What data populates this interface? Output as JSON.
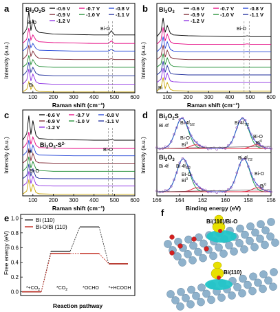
{
  "colors": {
    "series": [
      "#000000",
      "#e4007f",
      "#1e40d6",
      "#7a1f2b",
      "#1a8a2e",
      "#1b2a9a",
      "#8a2be2",
      "#c8a400"
    ],
    "fit_green": "#21a35a",
    "fit_red": "#e0203a",
    "fit_blue": "#2b55d6",
    "bi_o_curve": "#c0281c",
    "vesta_yellow": "#e8e000",
    "vesta_cyan": "#22c5c8",
    "atom_gray": "#8fb2cc"
  },
  "legend": {
    "labels": [
      "-0.6 V",
      "-0.7 V",
      "-0.8 V",
      "-0.9 V",
      "-1.0 V",
      "-1.1 V",
      "-1.2 V"
    ]
  },
  "panels": {
    "a": {
      "letter": "a",
      "sample": "Bi2O2S",
      "bi_o_left": "Bi-O",
      "bi_o_right": "Bi-O",
      "bi": "Bi"
    },
    "b": {
      "letter": "b",
      "sample": "Bi2O3",
      "bi_o_right": "Bi-O",
      "bi": "Bi"
    },
    "c": {
      "letter": "c",
      "sample": "Bi2O3-S2-",
      "bi_o_right": "Bi-O",
      "bi": "Bi",
      "bi_o_left": "Bi-O"
    },
    "d": {
      "letter": "d",
      "sample_top": "Bi2O2S",
      "sample_bottom": "Bi2O3",
      "labels_top": [
        "Bi 4f5/2",
        "Bi 4f7/2",
        "Bi 4f",
        "Bi-O",
        "Bi0",
        "Bi-O",
        "Bi0"
      ],
      "labels_bottom": [
        "Bi 4f5/2",
        "Bi 4f7/2",
        "Bi 4f",
        "Bi-O",
        "Bi0",
        "Bi-O",
        "Bi0"
      ]
    },
    "e": {
      "letter": "e",
      "series": [
        "Bi (110)",
        "Bi-O/Bi (110)"
      ]
    },
    "f": {
      "letter": "f",
      "label_top": "Bi(110)/Bi-O",
      "label_bottom": "Bi(110)"
    }
  },
  "axes": {
    "raman_xlabel": "Raman shift (cm⁻¹)",
    "intensity_ylabel": "Intensity (a.u.)",
    "binding_xlabel": "Binding energy (eV)",
    "free_energy_ylabel": "Free energy (eV)",
    "reaction_xlabel": "Reaction pathway",
    "raman_ticks": [
      "100",
      "200",
      "300",
      "400",
      "500",
      "600"
    ],
    "be_ticks": [
      "166",
      "164",
      "162",
      "160",
      "158",
      "156"
    ],
    "fe_ticks": [
      "1.0",
      "0.8",
      "0.6",
      "0.4",
      "0.2",
      "0.0"
    ],
    "steps": [
      "*+CO2",
      "*CO2",
      "*OCHO",
      "*+HCOOH"
    ]
  },
  "chart_data": [
    {
      "type": "line",
      "panel": "a",
      "title": "Bi2O2S",
      "xlabel": "Raman shift (cm⁻¹)",
      "ylabel": "Intensity (a.u.)",
      "xlim": [
        50,
        600
      ],
      "x_ticks": [
        100,
        200,
        300,
        400,
        500,
        600
      ],
      "reference_lines_x": [
        470,
        490
      ],
      "annotations": [
        "Bi-O",
        "Bi-O",
        "Bi"
      ],
      "series": [
        {
          "name": "-0.6 V",
          "x": [
            50,
            70,
            80,
            90,
            100,
            115,
            130,
            200,
            300,
            400,
            470,
            485,
            500,
            600
          ],
          "y": [
            6.8,
            7.5,
            9.6,
            7.3,
            8.6,
            7.4,
            7.1,
            6.9,
            6.85,
            6.8,
            6.8,
            7.3,
            6.8,
            6.8
          ]
        },
        {
          "name": "-0.7 V",
          "x": [
            50,
            70,
            80,
            90,
            100,
            115,
            130,
            200,
            300,
            400,
            470,
            485,
            500,
            600
          ],
          "y": [
            5.8,
            6.3,
            7.6,
            6.2,
            6.8,
            6.2,
            6.0,
            5.9,
            5.85,
            5.8,
            5.8,
            6.1,
            5.8,
            5.8
          ]
        },
        {
          "name": "-0.8 V",
          "x": [
            50,
            70,
            80,
            90,
            100,
            115,
            130,
            200,
            300,
            400,
            470,
            485,
            500,
            600
          ],
          "y": [
            4.9,
            5.3,
            6.4,
            5.3,
            5.8,
            5.2,
            5.0,
            4.95,
            4.9,
            4.9,
            4.9,
            5.1,
            4.9,
            4.9
          ]
        },
        {
          "name": "-0.9 V",
          "x": [
            50,
            70,
            80,
            90,
            100,
            115,
            130,
            200,
            300,
            400,
            470,
            485,
            500,
            600
          ],
          "y": [
            3.9,
            4.4,
            5.6,
            4.3,
            4.9,
            4.3,
            4.05,
            3.95,
            3.9,
            3.9,
            3.9,
            4.0,
            3.9,
            3.9
          ]
        },
        {
          "name": "-1.0 V",
          "x": [
            50,
            70,
            80,
            90,
            100,
            115,
            130,
            200,
            300,
            400,
            470,
            485,
            500,
            600
          ],
          "y": [
            3.0,
            3.4,
            4.4,
            3.3,
            3.9,
            3.3,
            3.1,
            3.0,
            3.0,
            3.0,
            3.0,
            3.05,
            3.0,
            3.0
          ]
        },
        {
          "name": "-1.1 V",
          "x": [
            50,
            70,
            80,
            90,
            100,
            115,
            130,
            200,
            300,
            400,
            470,
            485,
            500,
            600
          ],
          "y": [
            2.0,
            2.5,
            3.6,
            2.4,
            3.0,
            2.3,
            2.1,
            2.0,
            2.0,
            2.0,
            2.0,
            2.0,
            2.0,
            2.0
          ]
        },
        {
          "name": "-1.2 V",
          "x": [
            50,
            70,
            80,
            90,
            100,
            115,
            130,
            200,
            300,
            400,
            470,
            485,
            500,
            600
          ],
          "y": [
            1.0,
            1.5,
            2.8,
            1.4,
            2.2,
            1.3,
            1.1,
            1.0,
            1.0,
            1.0,
            1.0,
            1.0,
            1.0,
            1.0
          ]
        },
        {
          "name": "",
          "x": [
            50,
            70,
            80,
            90,
            100,
            115,
            130,
            200,
            300,
            400,
            470,
            485,
            500,
            600
          ],
          "y": [
            0.1,
            0.4,
            1.3,
            0.4,
            0.9,
            0.3,
            0.15,
            0.1,
            0.1,
            0.1,
            0.1,
            0.1,
            0.1,
            0.1
          ]
        }
      ]
    },
    {
      "type": "line",
      "panel": "b",
      "title": "Bi2O3",
      "xlabel": "Raman shift (cm⁻¹)",
      "ylabel": "Intensity (a.u.)",
      "xlim": [
        50,
        600
      ],
      "x_ticks": [
        100,
        200,
        300,
        400,
        500,
        600
      ],
      "reference_lines_x": [
        470,
        495
      ],
      "annotations": [
        "Bi-O",
        "Bi"
      ],
      "series": [
        {
          "name": "-0.6 V",
          "x": [
            50,
            70,
            80,
            90,
            100,
            115,
            130,
            200,
            300,
            400,
            470,
            485,
            500,
            600
          ],
          "y": [
            6.6,
            7.2,
            8.8,
            7.1,
            7.9,
            7.0,
            6.8,
            6.7,
            6.65,
            6.6,
            6.6,
            6.7,
            6.6,
            6.6
          ]
        },
        {
          "name": "-0.7 V",
          "x": [
            50,
            70,
            80,
            90,
            100,
            115,
            130,
            200,
            300,
            400,
            470,
            485,
            500,
            600
          ],
          "y": [
            5.7,
            6.2,
            7.7,
            6.1,
            6.9,
            6.0,
            5.8,
            5.7,
            5.7,
            5.7,
            5.7,
            5.75,
            5.7,
            5.7
          ]
        },
        {
          "name": "-0.8 V",
          "x": [
            50,
            70,
            80,
            90,
            100,
            115,
            130,
            200,
            300,
            400,
            470,
            485,
            500,
            600
          ],
          "y": [
            4.8,
            5.3,
            6.6,
            5.2,
            6.0,
            5.1,
            4.9,
            4.8,
            4.8,
            4.8,
            4.8,
            4.85,
            4.8,
            4.8
          ]
        },
        {
          "name": "-0.9 V",
          "x": [
            50,
            70,
            80,
            90,
            100,
            115,
            130,
            200,
            300,
            400,
            470,
            485,
            500,
            600
          ],
          "y": [
            3.9,
            4.3,
            5.6,
            4.2,
            5.0,
            4.2,
            4.0,
            3.9,
            3.9,
            3.9,
            3.9,
            3.9,
            3.9,
            3.9
          ]
        },
        {
          "name": "-1.0 V",
          "x": [
            50,
            70,
            80,
            90,
            100,
            115,
            130,
            200,
            300,
            400,
            470,
            485,
            500,
            600
          ],
          "y": [
            3.0,
            3.4,
            4.6,
            3.3,
            4.1,
            3.3,
            3.1,
            3.0,
            3.0,
            3.0,
            3.0,
            3.0,
            3.0,
            3.0
          ]
        },
        {
          "name": "-1.1 V",
          "x": [
            50,
            70,
            80,
            90,
            100,
            115,
            130,
            200,
            300,
            400,
            470,
            485,
            500,
            600
          ],
          "y": [
            2.1,
            2.5,
            3.7,
            2.4,
            3.2,
            2.3,
            2.2,
            2.1,
            2.1,
            2.1,
            2.1,
            2.1,
            2.1,
            2.1
          ]
        },
        {
          "name": "-1.2 V",
          "x": [
            50,
            70,
            80,
            90,
            100,
            115,
            130,
            200,
            300,
            400,
            470,
            485,
            500,
            600
          ],
          "y": [
            1.2,
            1.6,
            2.9,
            1.5,
            2.3,
            1.4,
            1.3,
            1.2,
            1.2,
            1.2,
            1.2,
            1.2,
            1.2,
            1.2
          ]
        },
        {
          "name": "",
          "x": [
            50,
            70,
            80,
            90,
            100,
            115,
            130,
            200,
            300,
            400,
            470,
            485,
            500,
            600
          ],
          "y": [
            0.2,
            0.6,
            1.8,
            0.5,
            1.2,
            0.4,
            0.25,
            0.2,
            0.2,
            0.2,
            0.2,
            0.2,
            0.2,
            0.2
          ]
        }
      ]
    },
    {
      "type": "line",
      "panel": "c",
      "title": "Bi2O3-S2-",
      "xlabel": "Raman shift (cm⁻¹)",
      "ylabel": "Intensity (a.u.)",
      "xlim": [
        50,
        600
      ],
      "x_ticks": [
        100,
        200,
        300,
        400,
        500,
        600
      ],
      "reference_lines_x": [
        470,
        490
      ],
      "annotations": [
        "Bi-O",
        "Bi",
        "Bi-O"
      ],
      "series": [
        {
          "name": "-0.6 V",
          "x": [
            50,
            70,
            80,
            90,
            100,
            115,
            130,
            200,
            300,
            400,
            470,
            485,
            500,
            600
          ],
          "y": [
            6.8,
            7.6,
            9.8,
            7.5,
            9.2,
            7.4,
            7.0,
            6.9,
            6.85,
            6.8,
            6.8,
            6.9,
            6.8,
            6.8
          ]
        },
        {
          "name": "-0.7 V",
          "x": [
            50,
            70,
            80,
            90,
            100,
            115,
            130,
            200,
            300,
            400,
            470,
            485,
            500,
            600
          ],
          "y": [
            5.8,
            6.4,
            7.8,
            6.3,
            7.2,
            6.2,
            5.9,
            5.85,
            5.8,
            5.8,
            5.8,
            5.85,
            5.8,
            5.8
          ]
        },
        {
          "name": "-0.8 V",
          "x": [
            50,
            70,
            80,
            90,
            100,
            115,
            130,
            200,
            300,
            400,
            470,
            485,
            500,
            600
          ],
          "y": [
            4.9,
            5.4,
            6.8,
            5.3,
            6.2,
            5.2,
            5.0,
            4.95,
            4.9,
            4.9,
            4.9,
            4.95,
            4.9,
            4.9
          ]
        },
        {
          "name": "-0.9 V",
          "x": [
            50,
            70,
            80,
            90,
            100,
            115,
            130,
            200,
            300,
            400,
            470,
            485,
            500,
            600
          ],
          "y": [
            4.0,
            4.4,
            5.8,
            4.3,
            5.2,
            4.2,
            4.05,
            4.0,
            4.0,
            4.0,
            4.0,
            4.0,
            4.0,
            4.0
          ]
        },
        {
          "name": "-1.0 V",
          "x": [
            50,
            70,
            80,
            90,
            100,
            115,
            130,
            200,
            300,
            400,
            470,
            485,
            500,
            600
          ],
          "y": [
            3.0,
            3.5,
            4.8,
            3.4,
            4.2,
            3.3,
            3.1,
            3.0,
            3.0,
            3.0,
            3.0,
            3.0,
            3.0,
            3.0
          ]
        },
        {
          "name": "-1.1 V",
          "x": [
            50,
            70,
            80,
            90,
            100,
            115,
            130,
            200,
            300,
            400,
            470,
            485,
            500,
            600
          ],
          "y": [
            2.1,
            2.5,
            3.9,
            2.4,
            3.3,
            2.3,
            2.15,
            2.1,
            2.1,
            2.1,
            2.1,
            2.1,
            2.1,
            2.1
          ]
        },
        {
          "name": "-1.2 V",
          "x": [
            50,
            70,
            80,
            90,
            100,
            115,
            130,
            200,
            300,
            400,
            470,
            485,
            500,
            600
          ],
          "y": [
            1.2,
            1.6,
            3.0,
            1.5,
            2.4,
            1.4,
            1.25,
            1.2,
            1.2,
            1.2,
            1.2,
            1.2,
            1.2,
            1.2
          ]
        },
        {
          "name": "",
          "x": [
            50,
            70,
            80,
            90,
            100,
            115,
            130,
            200,
            300,
            400,
            470,
            485,
            500,
            600
          ],
          "y": [
            0.2,
            0.6,
            2.0,
            0.5,
            1.4,
            0.4,
            0.25,
            0.2,
            0.2,
            0.2,
            0.2,
            0.2,
            0.2,
            0.2
          ]
        }
      ]
    },
    {
      "type": "line",
      "panel": "d",
      "title": "",
      "xlabel": "Binding energy (eV)",
      "ylabel": "Intensity (a.u.)",
      "xlim": [
        166,
        156
      ],
      "x_ticks": [
        166,
        164,
        162,
        160,
        158,
        156
      ],
      "subplots": [
        {
          "name": "Bi2O2S",
          "peaks_eV": {
            "Bi 4f5/2": 163.8,
            "Bi 4f7/2": 158.5
          }
        },
        {
          "name": "Bi2O3",
          "peaks_eV": {
            "Bi 4f5/2": 163.7,
            "Bi 4f7/2": 158.4
          }
        }
      ]
    },
    {
      "type": "line",
      "panel": "e",
      "title": "",
      "xlabel": "Reaction pathway",
      "ylabel": "Free energy (eV)",
      "ylim": [
        0.0,
        1.0
      ],
      "categories": [
        "*+CO2",
        "*CO2",
        "*OCHO",
        "*+HCOOH"
      ],
      "series": [
        {
          "name": "Bi (110)",
          "values": [
            0.0,
            0.55,
            0.88,
            0.38
          ]
        },
        {
          "name": "Bi-O/Bi (110)",
          "values": [
            0.0,
            0.52,
            0.52,
            0.38
          ]
        }
      ]
    }
  ]
}
